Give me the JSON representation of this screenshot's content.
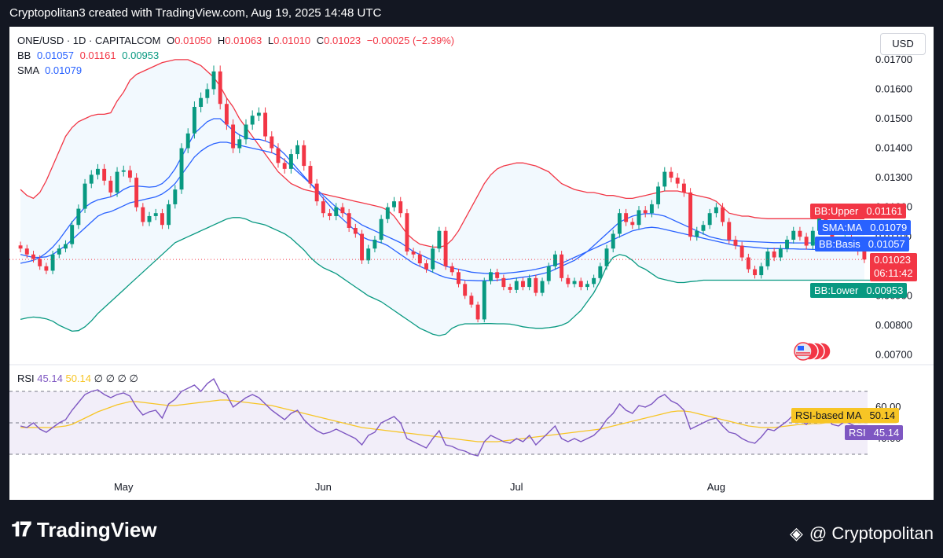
{
  "header": {
    "title": "Cryptopolitan3 created with TradingView.com, Aug 19, 2025 14:48 UTC"
  },
  "legend": {
    "symbol": "ONE/USD · 1D · CAPITALCOM",
    "o_label": "O",
    "o_value": "0.01050",
    "h_label": "H",
    "h_value": "0.01063",
    "l_label": "L",
    "l_value": "0.01010",
    "c_label": "C",
    "c_value": "0.01023",
    "change": "−0.00025 (−2.39%)",
    "bb_label": "BB",
    "bb_basis": "0.01057",
    "bb_upper": "0.01161",
    "bb_lower": "0.00953",
    "sma_label": "SMA",
    "sma_value": "0.01079",
    "rsi_label": "RSI",
    "rsi_value": "45.14",
    "rsi_ma_value": "50.14",
    "rsi_extra": "∅ ∅ ∅ ∅"
  },
  "currency_button": "USD",
  "price_tags": {
    "bb_upper_label": "BB:Upper",
    "bb_upper_value": "0.01161",
    "sma_label": "SMA:MA",
    "sma_value": "0.01079",
    "bb_basis_label": "BB:Basis",
    "bb_basis_value": "0.01057",
    "last_price": "0.01023",
    "countdown": "06:11:42",
    "bb_lower_label": "BB:Lower",
    "bb_lower_value": "0.00953",
    "rsi_ma_label": "RSI-based MA",
    "rsi_ma_value": "50.14",
    "rsi_label": "RSI",
    "rsi_value": "45.14"
  },
  "footer": {
    "brand": "TradingView",
    "credit": "@ Cryptopolitan"
  },
  "colors": {
    "up": "#089981",
    "down": "#f23645",
    "bb_upper": "#f23645",
    "bb_lower": "#089981",
    "bb_basis": "#2962ff",
    "sma": "#2962ff",
    "rsi": "#7e57c2",
    "rsi_ma": "#f7c525"
  },
  "chart_data": [
    {
      "type": "candlestick",
      "title": "ONE/USD · 1D · CAPITALCOM",
      "y_ticks": [
        "0.01700",
        "0.01600",
        "0.01500",
        "0.01400",
        "0.01300",
        "0.01200",
        "0.01100",
        "0.01000",
        "0.00900",
        "0.00800",
        "0.00700"
      ],
      "ylim": [
        0.0068,
        0.01705
      ],
      "x_month_labels": [
        {
          "label": "May",
          "index": 16
        },
        {
          "label": "Jun",
          "index": 47
        },
        {
          "label": "Jul",
          "index": 77
        },
        {
          "label": "Aug",
          "index": 108
        }
      ],
      "close": [
        0.0106,
        0.0104,
        0.01025,
        0.01,
        0.00985,
        0.0104,
        0.0106,
        0.01075,
        0.0114,
        0.01195,
        0.0128,
        0.0131,
        0.0133,
        0.0129,
        0.0125,
        0.0132,
        0.01325,
        0.013,
        0.012,
        0.0115,
        0.0117,
        0.0118,
        0.0114,
        0.0121,
        0.0126,
        0.014,
        0.0145,
        0.0154,
        0.0157,
        0.016,
        0.0166,
        0.0155,
        0.0148,
        0.014,
        0.0143,
        0.0148,
        0.0151,
        0.0152,
        0.0144,
        0.014,
        0.0135,
        0.0133,
        0.0138,
        0.0141,
        0.0134,
        0.0128,
        0.0122,
        0.0118,
        0.0117,
        0.012,
        0.0118,
        0.0113,
        0.0111,
        0.0102,
        0.0106,
        0.0109,
        0.0116,
        0.012,
        0.0122,
        0.0118,
        0.0105,
        0.0104,
        0.0101,
        0.0099,
        0.0106,
        0.0112,
        0.01,
        0.0098,
        0.0094,
        0.009,
        0.0087,
        0.0082,
        0.0095,
        0.0098,
        0.0096,
        0.0093,
        0.0092,
        0.0095,
        0.0093,
        0.0096,
        0.0091,
        0.0095,
        0.01,
        0.0104,
        0.0096,
        0.0094,
        0.0095,
        0.0093,
        0.0094,
        0.0096,
        0.01,
        0.0106,
        0.0111,
        0.0118,
        0.0115,
        0.0114,
        0.0119,
        0.0118,
        0.0121,
        0.0127,
        0.0132,
        0.013,
        0.0128,
        0.0125,
        0.011,
        0.0112,
        0.0114,
        0.0118,
        0.012,
        0.0115,
        0.0109,
        0.0107,
        0.0103,
        0.0099,
        0.0097,
        0.01,
        0.0105,
        0.0103,
        0.0106,
        0.0109,
        0.0112,
        0.011,
        0.0107,
        0.0112,
        0.0118,
        0.0114,
        0.0108,
        0.0107,
        0.011,
        0.0108,
        0.0105,
        0.01023
      ],
      "bb_upper": [
        0.0126,
        0.0124,
        0.0123,
        0.0125,
        0.0129,
        0.0134,
        0.0139,
        0.0144,
        0.0147,
        0.0149,
        0.015,
        0.0151,
        0.01515,
        0.01515,
        0.0152,
        0.0156,
        0.0159,
        0.0163,
        0.0165,
        0.0166,
        0.0167,
        0.0168,
        0.0169,
        0.01695,
        0.017,
        0.017,
        0.017,
        0.0169,
        0.0168,
        0.0166,
        0.0164,
        0.0161,
        0.0157,
        0.0154,
        0.015,
        0.0147,
        0.0144,
        0.0141,
        0.0138,
        0.0135,
        0.0132,
        0.013,
        0.0128,
        0.0127,
        0.0126,
        0.01255,
        0.0125,
        0.01245,
        0.0124,
        0.01235,
        0.0123,
        0.01225,
        0.0122,
        0.01215,
        0.0121,
        0.01205,
        0.012,
        0.0119,
        0.0117,
        0.0114,
        0.0111,
        0.0109,
        0.01075,
        0.0107,
        0.01065,
        0.01065,
        0.0107,
        0.0109,
        0.0112,
        0.0116,
        0.012,
        0.0124,
        0.0128,
        0.0131,
        0.0133,
        0.0134,
        0.01345,
        0.0135,
        0.0135,
        0.01345,
        0.0134,
        0.0133,
        0.0132,
        0.013,
        0.0128,
        0.0127,
        0.0126,
        0.01255,
        0.0125,
        0.0125,
        0.01245,
        0.0124,
        0.0124,
        0.01235,
        0.0123,
        0.0123,
        0.01235,
        0.0124,
        0.01245,
        0.0125,
        0.01255,
        0.01255,
        0.01255,
        0.0125,
        0.01245,
        0.0124,
        0.01235,
        0.0123,
        0.0122,
        0.012,
        0.0118,
        0.01175,
        0.0117,
        0.0117,
        0.01165,
        0.01163,
        0.01161,
        0.01161,
        0.01161,
        0.01161,
        0.01161,
        0.01161,
        0.01161,
        0.01161,
        0.01161,
        0.01161,
        0.01161,
        0.01161,
        0.01161,
        0.01161,
        0.01161,
        0.01161
      ],
      "bb_basis": [
        0.0104,
        0.01035,
        0.0103,
        0.0103,
        0.01032,
        0.0104,
        0.01055,
        0.0107,
        0.0109,
        0.0111,
        0.0113,
        0.0115,
        0.0117,
        0.0118,
        0.01185,
        0.01195,
        0.01205,
        0.01215,
        0.0122,
        0.01225,
        0.0123,
        0.01235,
        0.01245,
        0.0126,
        0.0128,
        0.0131,
        0.0134,
        0.0137,
        0.0139,
        0.01405,
        0.01415,
        0.0142,
        0.0142,
        0.01415,
        0.0141,
        0.01405,
        0.014,
        0.01395,
        0.0139,
        0.01385,
        0.01375,
        0.0136,
        0.0134,
        0.0132,
        0.013,
        0.0128,
        0.0126,
        0.0124,
        0.0122,
        0.012,
        0.01185,
        0.0117,
        0.01155,
        0.0114,
        0.0113,
        0.0112,
        0.0111,
        0.011,
        0.0109,
        0.0108,
        0.01065,
        0.0105,
        0.0104,
        0.0103,
        0.0102,
        0.0101,
        0.01,
        0.00995,
        0.0099,
        0.00985,
        0.0098,
        0.00978,
        0.00976,
        0.00975,
        0.00975,
        0.00976,
        0.00978,
        0.0098,
        0.00983,
        0.00986,
        0.0099,
        0.00995,
        0.01,
        0.01005,
        0.0101,
        0.0102,
        0.0103,
        0.0104,
        0.0105,
        0.0106,
        0.0107,
        0.0108,
        0.0109,
        0.011,
        0.0111,
        0.0112,
        0.01125,
        0.0113,
        0.01132,
        0.0113,
        0.01125,
        0.0112,
        0.01115,
        0.0111,
        0.01105,
        0.011,
        0.01095,
        0.0109,
        0.01085,
        0.0108,
        0.01075,
        0.0107,
        0.01068,
        0.01066,
        0.01064,
        0.01062,
        0.0106,
        0.0106,
        0.0106,
        0.01059,
        0.01059,
        0.01058,
        0.01058,
        0.01057,
        0.01057,
        0.01057,
        0.01057,
        0.01057,
        0.01057,
        0.01057,
        0.01057,
        0.01057
      ],
      "sma": [
        0.0101,
        0.01015,
        0.0102,
        0.0103,
        0.01045,
        0.01065,
        0.0109,
        0.0112,
        0.0115,
        0.01175,
        0.012,
        0.01215,
        0.01225,
        0.0123,
        0.01235,
        0.01245,
        0.0126,
        0.0127,
        0.01272,
        0.0127,
        0.01268,
        0.0127,
        0.0128,
        0.013,
        0.0133,
        0.0137,
        0.0141,
        0.0145,
        0.0147,
        0.0149,
        0.015,
        0.015,
        0.0148,
        0.0146,
        0.01445,
        0.01435,
        0.0143,
        0.0143,
        0.01425,
        0.01415,
        0.014,
        0.0138,
        0.01355,
        0.0133,
        0.01305,
        0.0128,
        0.01255,
        0.0123,
        0.01205,
        0.0118,
        0.0116,
        0.0114,
        0.0112,
        0.011,
        0.0109,
        0.01085,
        0.0108,
        0.0107,
        0.01055,
        0.0104,
        0.01025,
        0.0101,
        0.01,
        0.0099,
        0.0098,
        0.0097,
        0.00962,
        0.00958,
        0.00955,
        0.00953,
        0.00952,
        0.00951,
        0.00951,
        0.00952,
        0.00953,
        0.00955,
        0.00957,
        0.0096,
        0.00963,
        0.00966,
        0.0097,
        0.00975,
        0.0098,
        0.0099,
        0.01,
        0.0101,
        0.0102,
        0.01035,
        0.0105,
        0.0107,
        0.0109,
        0.0111,
        0.0113,
        0.0115,
        0.0116,
        0.0117,
        0.01175,
        0.01178,
        0.01178,
        0.01175,
        0.0117,
        0.0116,
        0.0115,
        0.0114,
        0.0113,
        0.0112,
        0.0111,
        0.011,
        0.01095,
        0.0109,
        0.01088,
        0.01086,
        0.01085,
        0.01084,
        0.01083,
        0.01082,
        0.01081,
        0.0108,
        0.0108,
        0.0108,
        0.01079,
        0.01079,
        0.01079,
        0.01079,
        0.01079,
        0.01079,
        0.01079,
        0.01079,
        0.01079,
        0.01079,
        0.01079,
        0.01079,
        0.01079
      ],
      "bb_lower": [
        0.0082,
        0.00825,
        0.00828,
        0.00826,
        0.00822,
        0.00814,
        0.008,
        0.0079,
        0.0078,
        0.00782,
        0.00795,
        0.00815,
        0.0084,
        0.0086,
        0.0088,
        0.009,
        0.0092,
        0.0094,
        0.0096,
        0.0098,
        0.01,
        0.0102,
        0.0104,
        0.0106,
        0.0108,
        0.0109,
        0.011,
        0.0111,
        0.0112,
        0.0113,
        0.0114,
        0.0115,
        0.0116,
        0.01165,
        0.01165,
        0.0116,
        0.0115,
        0.01145,
        0.0114,
        0.0113,
        0.0112,
        0.0111,
        0.01095,
        0.01075,
        0.01055,
        0.0103,
        0.0101,
        0.00995,
        0.00985,
        0.00975,
        0.0096,
        0.00945,
        0.0093,
        0.00915,
        0.009,
        0.0089,
        0.0088,
        0.00865,
        0.0085,
        0.00835,
        0.0082,
        0.00805,
        0.0079,
        0.0078,
        0.0077,
        0.00765,
        0.0077,
        0.0079,
        0.008,
        0.00805,
        0.00805,
        0.00805,
        0.00806,
        0.00806,
        0.00805,
        0.00805,
        0.00804,
        0.008,
        0.00795,
        0.00792,
        0.0079,
        0.0079,
        0.00792,
        0.00795,
        0.008,
        0.0081,
        0.0083,
        0.0085,
        0.0088,
        0.0091,
        0.0095,
        0.01,
        0.0103,
        0.0104,
        0.01035,
        0.0102,
        0.01,
        0.0099,
        0.00975,
        0.0096,
        0.00955,
        0.0095,
        0.00945,
        0.00945,
        0.00948,
        0.0095,
        0.00953,
        0.00953,
        0.00953,
        0.00953,
        0.00953,
        0.00953,
        0.00953,
        0.00953,
        0.00953,
        0.00953,
        0.00953,
        0.00953,
        0.00953,
        0.00953,
        0.00953,
        0.00953,
        0.00953,
        0.00953,
        0.00953,
        0.00953,
        0.00953,
        0.00953,
        0.00953,
        0.00953,
        0.00953,
        0.00953,
        0.00953,
        0.00953
      ]
    },
    {
      "type": "line",
      "title": "RSI",
      "y_ticks": [
        "60.00",
        "40.00"
      ],
      "ylim": [
        22,
        82
      ],
      "band": [
        30,
        70
      ],
      "series": [
        {
          "name": "RSI",
          "values": [
            48,
            47,
            50,
            46,
            44,
            47,
            50,
            52,
            58,
            63,
            68,
            70,
            71,
            68,
            66,
            68,
            69,
            67,
            60,
            55,
            57,
            58,
            53,
            62,
            65,
            70,
            72,
            74,
            70,
            75,
            78,
            70,
            68,
            60,
            63,
            66,
            68,
            66,
            62,
            58,
            55,
            52,
            56,
            58,
            52,
            48,
            45,
            43,
            44,
            46,
            44,
            42,
            40,
            36,
            42,
            44,
            50,
            52,
            54,
            50,
            40,
            38,
            36,
            34,
            40,
            45,
            36,
            35,
            33,
            32,
            30,
            29,
            38,
            42,
            40,
            38,
            37,
            40,
            38,
            42,
            36,
            40,
            44,
            48,
            40,
            38,
            40,
            38,
            40,
            42,
            46,
            52,
            56,
            62,
            58,
            56,
            61,
            60,
            62,
            66,
            68,
            64,
            62,
            58,
            46,
            48,
            50,
            52,
            53,
            48,
            44,
            43,
            40,
            38,
            37,
            41,
            46,
            45,
            48,
            51,
            55,
            52,
            49,
            54,
            58,
            55,
            49,
            48,
            51,
            49,
            47,
            45.14
          ]
        },
        {
          "name": "RSI-based MA",
          "values": [
            47,
            47,
            47,
            47,
            47,
            47,
            47.5,
            48,
            49,
            51,
            53,
            55,
            57,
            58.5,
            60,
            61.5,
            62.5,
            63.5,
            63.5,
            63,
            62.5,
            62,
            61.5,
            61,
            61,
            61.5,
            62,
            62.5,
            63,
            63.5,
            64,
            64.5,
            64.5,
            64,
            63.5,
            63,
            62.5,
            62,
            61.5,
            61,
            60,
            59,
            58,
            57,
            56,
            55,
            54,
            53,
            52,
            51,
            50,
            49,
            48,
            47,
            46.5,
            46,
            45.5,
            45,
            44.5,
            44,
            43.5,
            43,
            42.5,
            42,
            41.5,
            41,
            40.5,
            40,
            39.5,
            39,
            38.5,
            38,
            38,
            38,
            38,
            38.5,
            39,
            39.5,
            40,
            40.5,
            41,
            41.5,
            42,
            42.5,
            43,
            43.5,
            44,
            44.5,
            45,
            45.5,
            46,
            47,
            48,
            49,
            50,
            51,
            52,
            53,
            54,
            55,
            56,
            57,
            57.5,
            57.5,
            57,
            56,
            55,
            54,
            53,
            52,
            51,
            50,
            49,
            48,
            47.5,
            47,
            47,
            47,
            47.5,
            48,
            48.5,
            49,
            49,
            49.5,
            49.5,
            50,
            50,
            50,
            50,
            50.14,
            50.14,
            50.14,
            50.14,
            50.14,
            50.14,
            50.14,
            50.14
          ]
        }
      ]
    }
  ]
}
